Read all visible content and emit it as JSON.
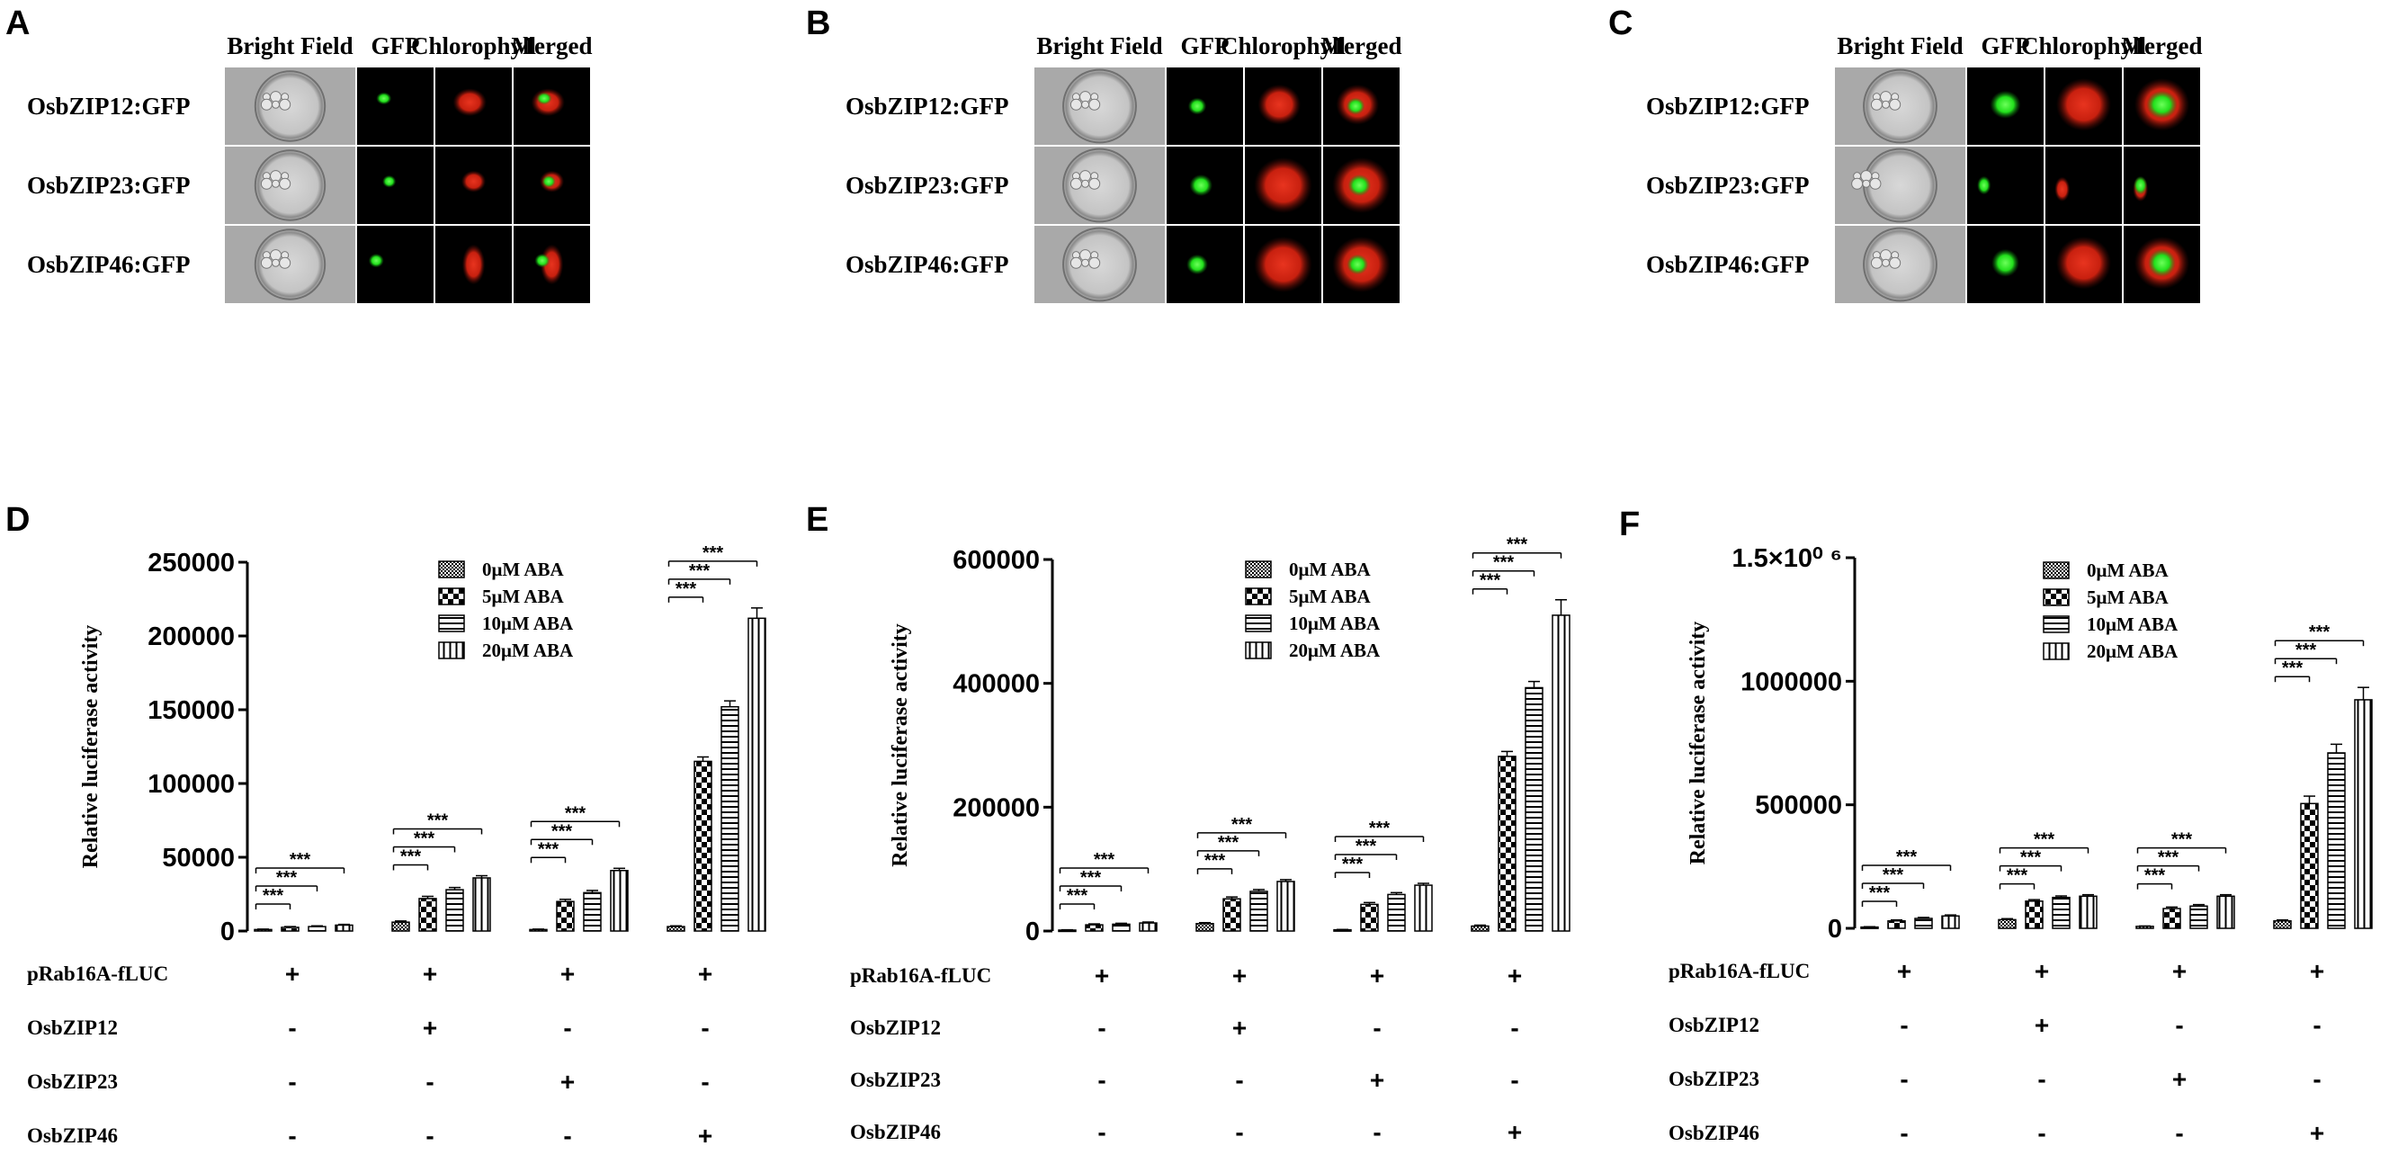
{
  "panels_top": [
    {
      "label": "A",
      "columns": [
        "Bright Field",
        "GFP",
        "Chlorophyll",
        "Merged"
      ],
      "rows": [
        "OsbZIP12:GFP",
        "OsbZIP23:GFP",
        "OsbZIP46:GFP"
      ]
    },
    {
      "label": "B",
      "columns": [
        "Bright Field",
        "GFP",
        "Chlorophyll",
        "Merged"
      ],
      "rows": [
        "OsbZIP12:GFP",
        "OsbZIP23:GFP",
        "OsbZIP46:GFP"
      ]
    },
    {
      "label": "C",
      "columns": [
        "Bright Field",
        "GFP",
        "Chlorophyll",
        "Merged"
      ],
      "rows": [
        "OsbZIP12:GFP",
        "OsbZIP23:GFP",
        "OsbZIP46:GFP"
      ]
    }
  ],
  "colors": {
    "gfp": "#22e01c",
    "chlorophyll": "#d42315",
    "background": "#000000",
    "brightfield": "#c9c9c9"
  },
  "chart_data": [
    {
      "label": "D",
      "type": "bar",
      "ylabel": "Relative luciferase activity",
      "ylim": [
        0,
        250000
      ],
      "yticks": [
        0,
        50000,
        100000,
        150000,
        200000,
        250000
      ],
      "ytick_labels": [
        "0",
        "50000",
        "100000",
        "150000",
        "200000",
        "250000"
      ],
      "legend": [
        "0μM ABA",
        "5μM ABA",
        "10μM ABA",
        "20μM ABA"
      ],
      "series": [
        {
          "name": "0μM ABA",
          "values": [
            1000,
            6000,
            1000,
            3000
          ],
          "errors": [
            300,
            800,
            300,
            500
          ]
        },
        {
          "name": "5μM ABA",
          "values": [
            2500,
            22000,
            20000,
            115000
          ],
          "errors": [
            500,
            1500,
            1500,
            3000
          ]
        },
        {
          "name": "10μM ABA",
          "values": [
            3000,
            28000,
            26000,
            152000
          ],
          "errors": [
            500,
            1500,
            1500,
            4000
          ]
        },
        {
          "name": "20μM ABA",
          "values": [
            4000,
            36000,
            41000,
            212000
          ],
          "errors": [
            500,
            1500,
            1500,
            7000
          ]
        }
      ],
      "significance": "***",
      "conditions": {
        "names": [
          "pRab16A-fLUC",
          "OsbZIP12",
          "OsbZIP23",
          "OsbZIP46"
        ],
        "marks": [
          [
            "+",
            "+",
            "+",
            "+"
          ],
          [
            "-",
            "+",
            "-",
            "-"
          ],
          [
            "-",
            "-",
            "+",
            "-"
          ],
          [
            "-",
            "-",
            "-",
            "+"
          ]
        ]
      }
    },
    {
      "label": "E",
      "type": "bar",
      "ylabel": "Relative luciferase activity",
      "ylim": [
        0,
        600000
      ],
      "yticks": [
        0,
        200000,
        400000,
        600000
      ],
      "ytick_labels": [
        "0",
        "200000",
        "400000",
        "600000"
      ],
      "legend": [
        "0μM ABA",
        "5μM ABA",
        "10μM ABA",
        "20μM ABA"
      ],
      "series": [
        {
          "name": "0μM ABA",
          "values": [
            1500,
            12000,
            2000,
            8000
          ],
          "errors": [
            500,
            1500,
            500,
            1500
          ]
        },
        {
          "name": "5μM ABA",
          "values": [
            10000,
            52000,
            43000,
            282000
          ],
          "errors": [
            1500,
            3000,
            3000,
            8000
          ]
        },
        {
          "name": "10μM ABA",
          "values": [
            11000,
            64000,
            59000,
            393000
          ],
          "errors": [
            1500,
            3000,
            3000,
            10000
          ]
        },
        {
          "name": "20μM ABA",
          "values": [
            13000,
            80000,
            74000,
            510000
          ],
          "errors": [
            1500,
            3000,
            3000,
            25000
          ]
        }
      ],
      "significance": "***",
      "conditions": {
        "names": [
          "pRab16A-fLUC",
          "OsbZIP12",
          "OsbZIP23",
          "OsbZIP46"
        ],
        "marks": [
          [
            "+",
            "+",
            "+",
            "+"
          ],
          [
            "-",
            "+",
            "-",
            "-"
          ],
          [
            "-",
            "-",
            "+",
            "-"
          ],
          [
            "-",
            "-",
            "-",
            "+"
          ]
        ]
      }
    },
    {
      "label": "F",
      "type": "bar",
      "ylabel": "Relative luciferase activity",
      "ylim": [
        0,
        1500000
      ],
      "yticks": [
        0,
        500000,
        1000000,
        1500000
      ],
      "ytick_labels": [
        "0",
        "500000",
        "1000000",
        "1.5×10⁰ ⁶"
      ],
      "legend": [
        "0μM ABA",
        "5μM ABA",
        "10μM ABA",
        "20μM ABA"
      ],
      "series": [
        {
          "name": "0μM ABA",
          "values": [
            5000,
            35000,
            8000,
            30000
          ],
          "errors": [
            1500,
            4000,
            1500,
            4000
          ]
        },
        {
          "name": "5μM ABA",
          "values": [
            30000,
            110000,
            80000,
            505000
          ],
          "errors": [
            4000,
            6000,
            6000,
            30000
          ]
        },
        {
          "name": "10μM ABA",
          "values": [
            40000,
            125000,
            90000,
            710000
          ],
          "errors": [
            4000,
            6000,
            6000,
            35000
          ]
        },
        {
          "name": "20μM ABA",
          "values": [
            50000,
            130000,
            130000,
            925000
          ],
          "errors": [
            4000,
            6000,
            6000,
            50000
          ]
        }
      ],
      "significance": "***",
      "conditions": {
        "names": [
          "pRab16A-fLUC",
          "OsbZIP12",
          "OsbZIP23",
          "OsbZIP46"
        ],
        "marks": [
          [
            "+",
            "+",
            "+",
            "+"
          ],
          [
            "-",
            "+",
            "-",
            "-"
          ],
          [
            "-",
            "-",
            "+",
            "-"
          ],
          [
            "-",
            "-",
            "-",
            "+"
          ]
        ]
      }
    }
  ]
}
